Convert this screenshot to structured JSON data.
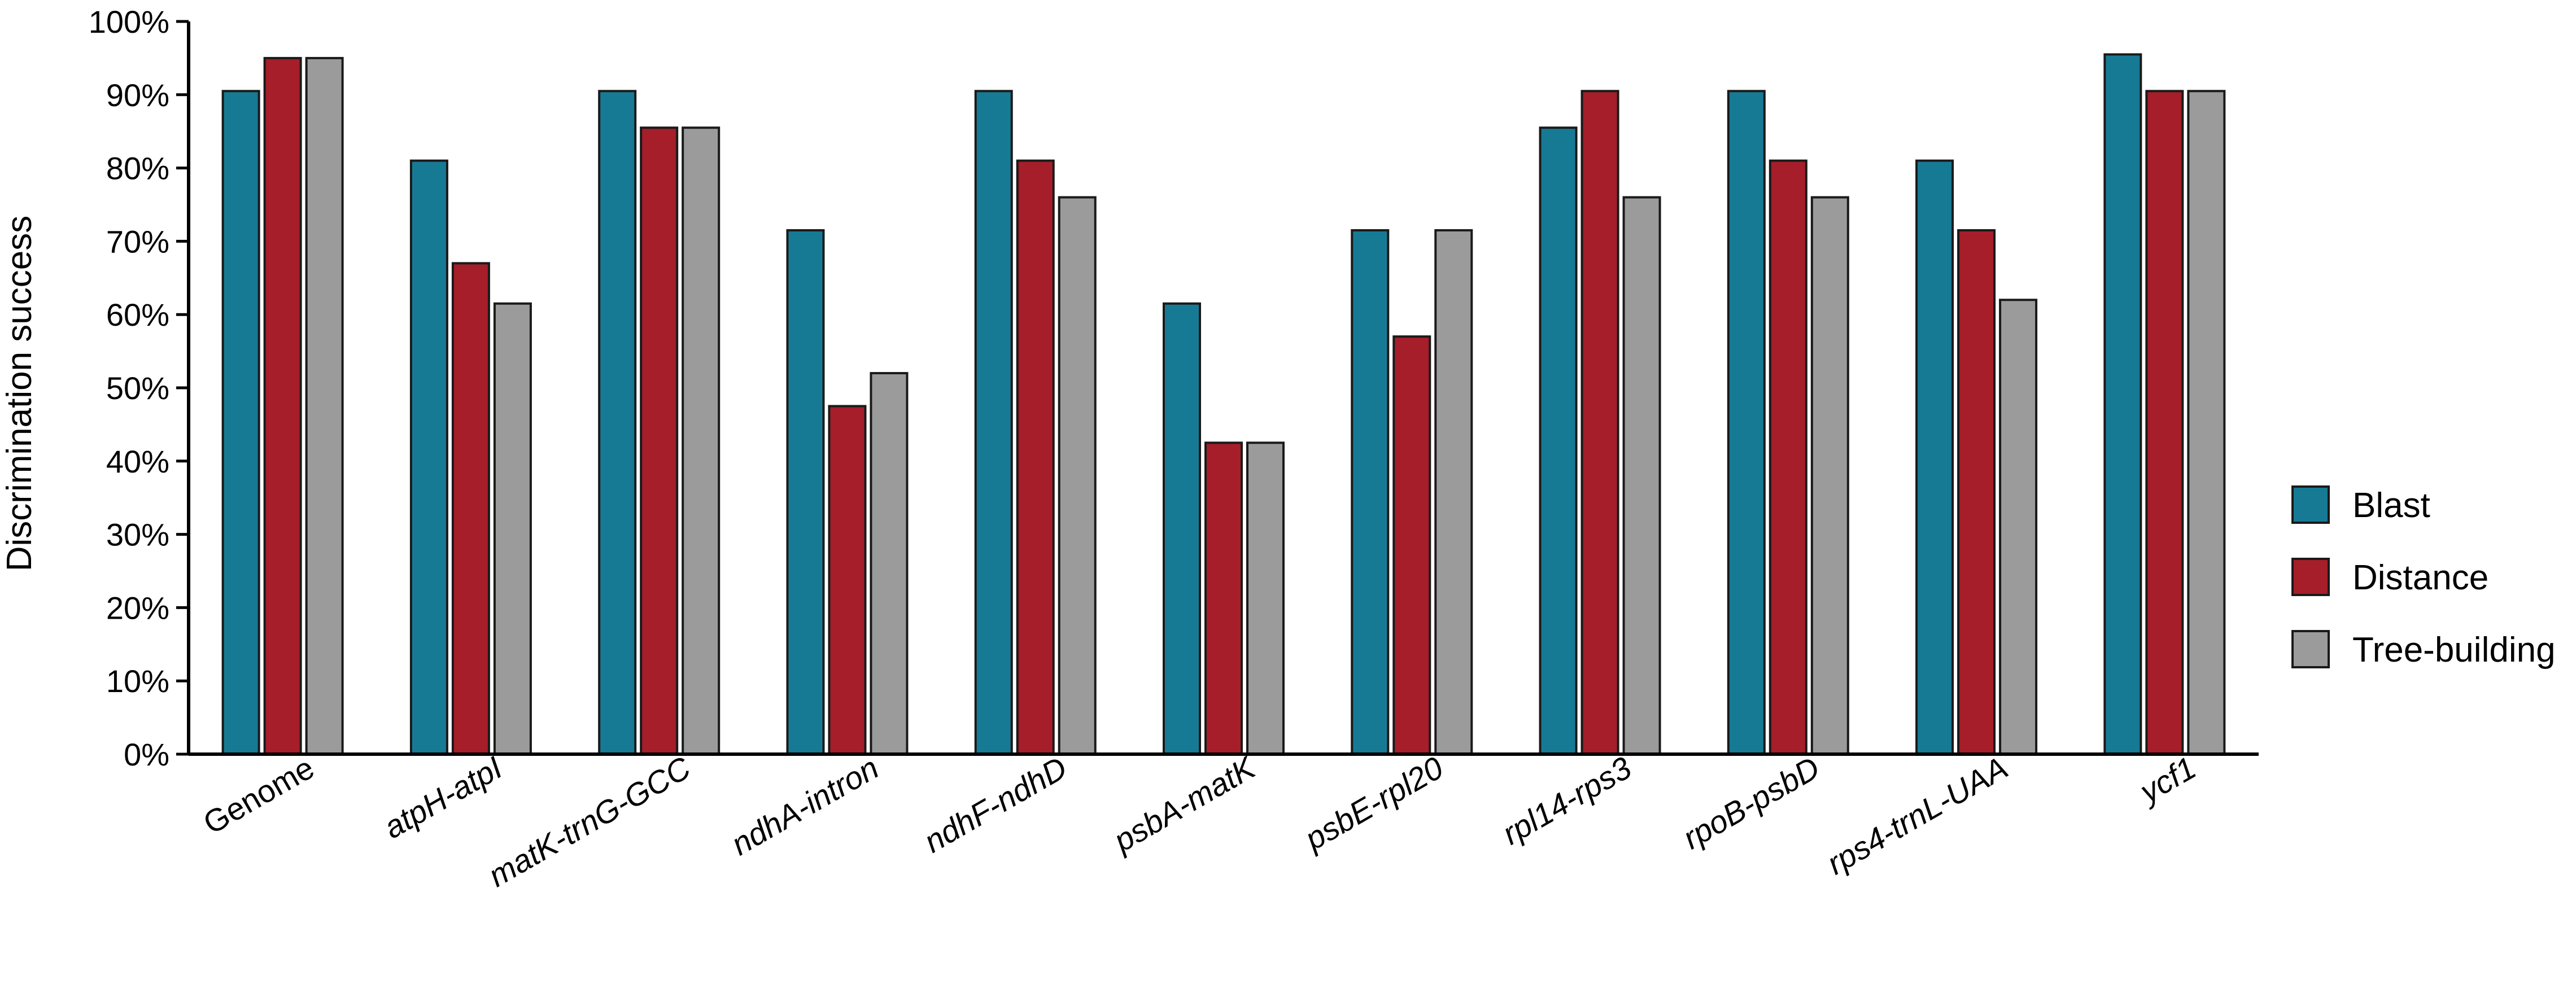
{
  "chart_data": {
    "type": "bar",
    "title": "",
    "xlabel": "",
    "ylabel": "Discrimination success",
    "ylim": [
      0,
      100
    ],
    "y_ticks": [
      "0%",
      "10%",
      "20%",
      "30%",
      "40%",
      "50%",
      "60%",
      "70%",
      "80%",
      "90%",
      "100%"
    ],
    "categories": [
      "Genome",
      "atpH-atpI",
      "matK-trnG-GCC",
      "ndhA-intron",
      "ndhF-ndhD",
      "psbA-matK",
      "psbE-rpl20",
      "rpl14-rps3",
      "rpoB-psbD",
      "rps4-trnL-UAA",
      "ycf1"
    ],
    "italic_categories": [
      false,
      true,
      true,
      true,
      true,
      true,
      true,
      true,
      true,
      true,
      true
    ],
    "series": [
      {
        "name": "Blast",
        "color": "#177a95",
        "values": [
          90.5,
          81,
          90.5,
          71.5,
          90.5,
          61.5,
          71.5,
          85.5,
          90.5,
          81,
          95.5
        ]
      },
      {
        "name": "Distance",
        "color": "#a51e29",
        "values": [
          95,
          67,
          85.5,
          47.5,
          81,
          42.5,
          57,
          90.5,
          81,
          71.5,
          90.5
        ]
      },
      {
        "name": "Tree-building",
        "color": "#9b9b9b",
        "values": [
          95,
          61.5,
          85.5,
          52,
          76,
          42.5,
          71.5,
          76,
          76,
          62,
          90.5
        ]
      }
    ],
    "legend_position": "right",
    "grid": false
  }
}
